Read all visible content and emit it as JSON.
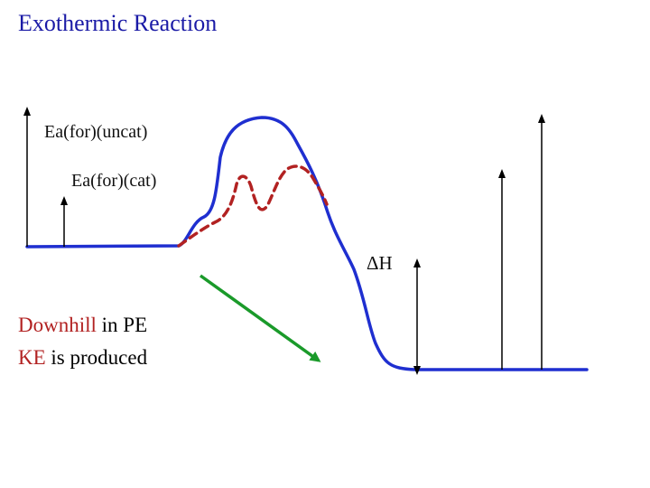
{
  "title": "Exothermic Reaction",
  "labels": {
    "ea_uncat": "Ea(for)(uncat)",
    "ea_cat": "Ea(for)(cat)",
    "delta_h": "ΔH"
  },
  "caption": {
    "line1_highlight": "Downhill",
    "line1_rest": " in PE",
    "line2_highlight": "KE",
    "line2_rest": " is produced"
  },
  "colors": {
    "title": "#1a1aa6",
    "uncatalyzed_curve": "#1f2fd0",
    "catalyzed_curve": "#b22222",
    "arrow_green": "#1a9a2a",
    "highlight_text": "#b22222"
  }
}
